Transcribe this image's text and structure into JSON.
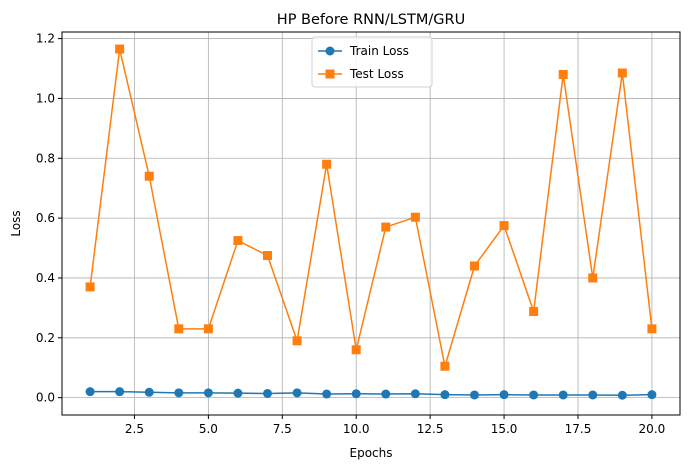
{
  "chart_data": {
    "type": "line",
    "title": "HP Before RNN/LSTM/GRU",
    "xlabel": "Epochs",
    "ylabel": "Loss",
    "xlim": [
      0.05,
      20.95
    ],
    "ylim": [
      -0.058,
      1.222
    ],
    "xticks": [
      2.5,
      5.0,
      7.5,
      10.0,
      12.5,
      15.0,
      17.5,
      20.0
    ],
    "xtick_labels": [
      "2.5",
      "5.0",
      "7.5",
      "10.0",
      "12.5",
      "15.0",
      "17.5",
      "20.0"
    ],
    "yticks": [
      0.0,
      0.2,
      0.4,
      0.6,
      0.8,
      1.0,
      1.2
    ],
    "ytick_labels": [
      "0.0",
      "0.2",
      "0.4",
      "0.6",
      "0.8",
      "1.0",
      "1.2"
    ],
    "grid": true,
    "legend_position": "top-center",
    "x": [
      1,
      2,
      3,
      4,
      5,
      6,
      7,
      8,
      9,
      10,
      11,
      12,
      13,
      14,
      15,
      16,
      17,
      18,
      19,
      20
    ],
    "series": [
      {
        "name": "Train Loss",
        "color": "#1f77b4",
        "marker": "circle",
        "values": [
          0.02,
          0.02,
          0.018,
          0.016,
          0.016,
          0.015,
          0.014,
          0.016,
          0.012,
          0.013,
          0.012,
          0.013,
          0.01,
          0.009,
          0.01,
          0.009,
          0.009,
          0.009,
          0.008,
          0.01
        ]
      },
      {
        "name": "Test Loss",
        "color": "#ff7f0e",
        "marker": "square",
        "values": [
          0.37,
          1.165,
          0.74,
          0.23,
          0.23,
          0.525,
          0.475,
          0.19,
          0.78,
          0.16,
          0.57,
          0.603,
          0.105,
          0.44,
          0.575,
          0.288,
          1.08,
          0.4,
          1.085,
          0.23
        ]
      }
    ]
  }
}
